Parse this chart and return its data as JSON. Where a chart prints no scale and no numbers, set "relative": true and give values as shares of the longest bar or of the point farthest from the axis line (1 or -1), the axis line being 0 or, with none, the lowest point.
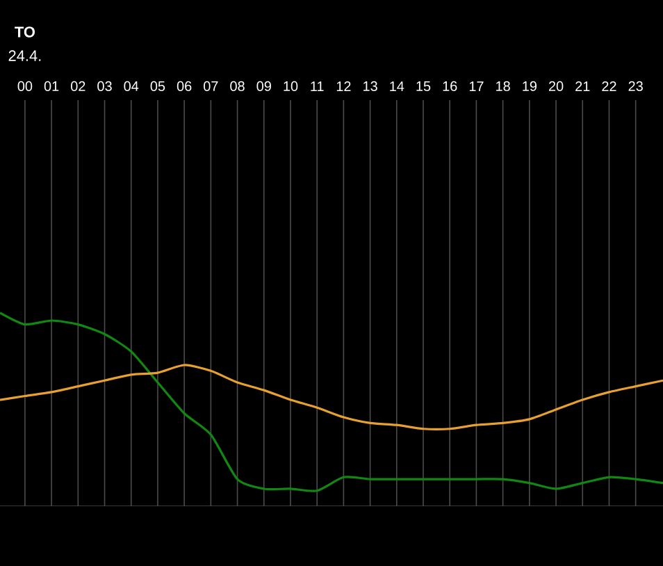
{
  "chart_data": {
    "type": "line",
    "relative": true,
    "x": [
      -0.94,
      0,
      1,
      2,
      3,
      4,
      5,
      6,
      7,
      8,
      9,
      10,
      11,
      12,
      13,
      14,
      15,
      16,
      17,
      18,
      19,
      20,
      21,
      22,
      23,
      24.03
    ],
    "xlim": [
      -0.94,
      24.03
    ],
    "xticks": [
      {
        "value": 0,
        "label": "00"
      },
      {
        "value": 1,
        "label": "01"
      },
      {
        "value": 2,
        "label": "02"
      },
      {
        "value": 3,
        "label": "03"
      },
      {
        "value": 4,
        "label": "04"
      },
      {
        "value": 5,
        "label": "05"
      },
      {
        "value": 6,
        "label": "06"
      },
      {
        "value": 7,
        "label": "07"
      },
      {
        "value": 8,
        "label": "08"
      },
      {
        "value": 9,
        "label": "09"
      },
      {
        "value": 10,
        "label": "10"
      },
      {
        "value": 11,
        "label": "11"
      },
      {
        "value": 12,
        "label": "12"
      },
      {
        "value": 13,
        "label": "13"
      },
      {
        "value": 14,
        "label": "14"
      },
      {
        "value": 15,
        "label": "15"
      },
      {
        "value": 16,
        "label": "16"
      },
      {
        "value": 17,
        "label": "17"
      },
      {
        "value": 18,
        "label": "18"
      },
      {
        "value": 19,
        "label": "19"
      },
      {
        "value": 20,
        "label": "20"
      },
      {
        "value": 21,
        "label": "21"
      },
      {
        "value": 22,
        "label": "22"
      },
      {
        "value": 23,
        "label": "23"
      }
    ],
    "series": [
      {
        "color": "#118811",
        "values": [
          1.0,
          0.94,
          0.96,
          0.94,
          0.89,
          0.8,
          0.64,
          0.48,
          0.37,
          0.14,
          0.09,
          0.09,
          0.08,
          0.15,
          0.14,
          0.14,
          0.14,
          0.14,
          0.14,
          0.14,
          0.12,
          0.09,
          0.12,
          0.15,
          0.14,
          0.12
        ]
      },
      {
        "color": "#e8a030",
        "values": [
          0.55,
          0.57,
          0.59,
          0.62,
          0.65,
          0.68,
          0.69,
          0.73,
          0.7,
          0.64,
          0.6,
          0.55,
          0.51,
          0.46,
          0.43,
          0.42,
          0.4,
          0.4,
          0.42,
          0.43,
          0.45,
          0.5,
          0.55,
          0.59,
          0.62,
          0.65
        ]
      }
    ],
    "annotations": [
      "TO",
      "24.4."
    ],
    "grid": "x",
    "marker": "none",
    "line_style": "solid"
  }
}
